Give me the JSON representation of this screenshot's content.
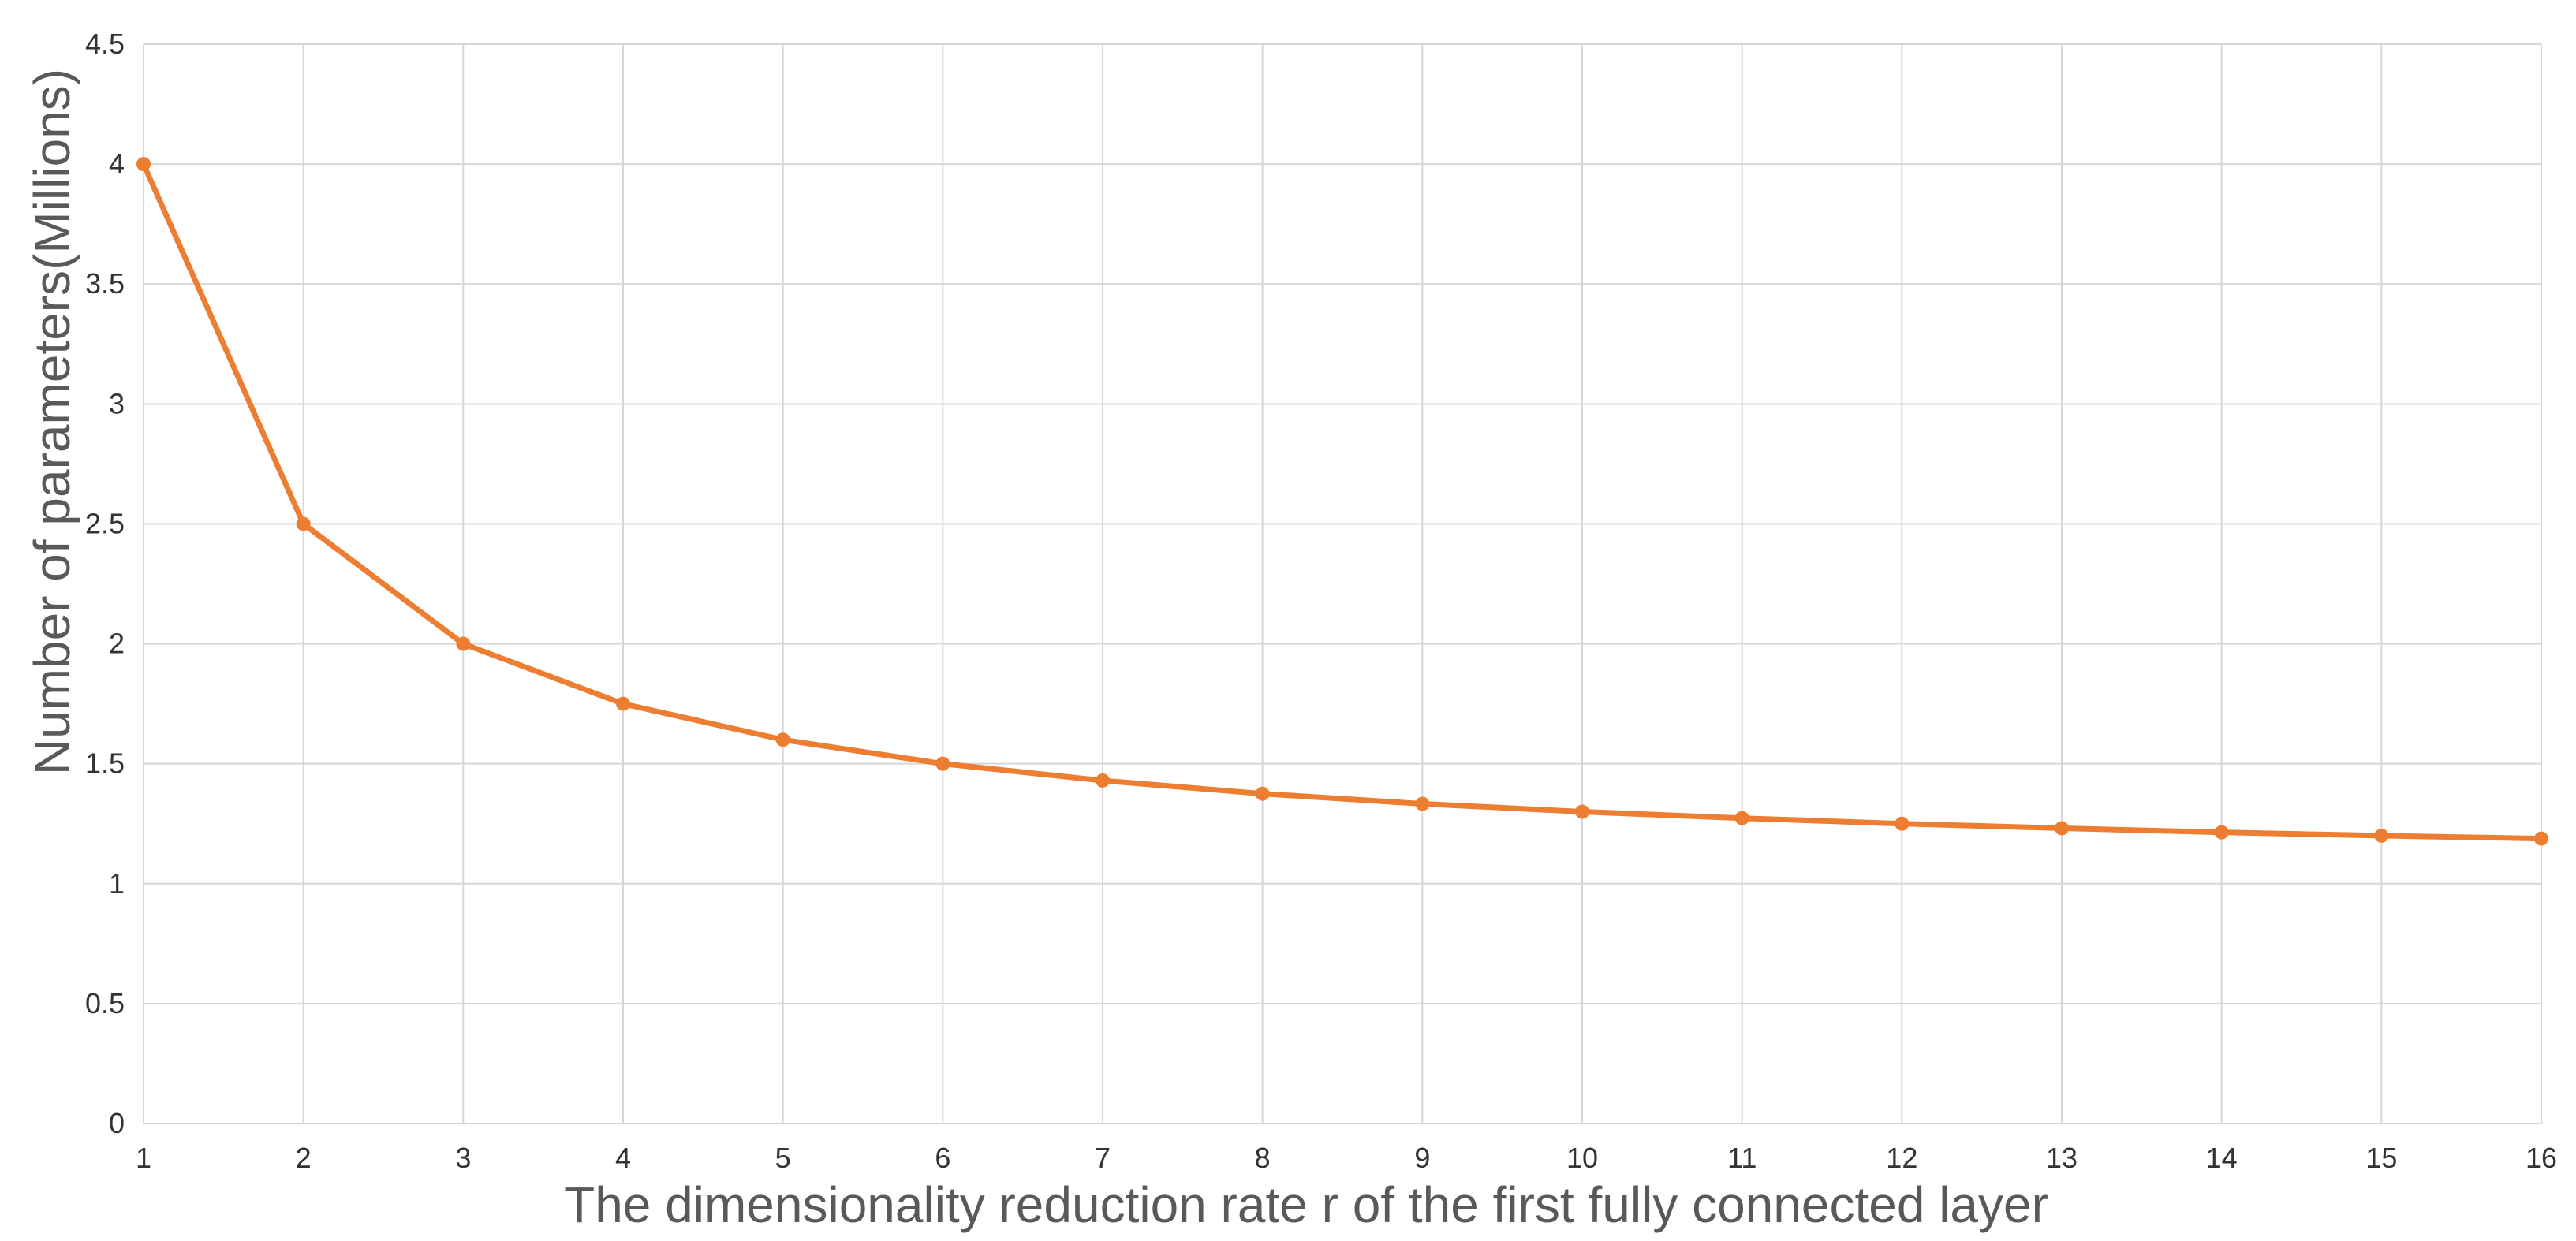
{
  "chart_data": {
    "type": "line",
    "title": "",
    "xlabel": "The dimensionality reduction rate r of the first fully connected layer",
    "ylabel": "Number of  parameters(Millions)",
    "x": [
      1,
      2,
      3,
      4,
      5,
      6,
      7,
      8,
      9,
      10,
      11,
      12,
      13,
      14,
      15,
      16
    ],
    "xlim": [
      1,
      16
    ],
    "ylim": [
      0,
      4.5
    ],
    "y_ticks": [
      "0",
      "0.5",
      "1",
      "1.5",
      "2",
      "2.5",
      "3",
      "3.5",
      "4",
      "4.5"
    ],
    "x_ticks": [
      "1",
      "2",
      "3",
      "4",
      "5",
      "6",
      "7",
      "8",
      "9",
      "10",
      "11",
      "12",
      "13",
      "14",
      "15",
      "16"
    ],
    "grid": true,
    "legend": "none",
    "series": [
      {
        "color": "#ed7d31",
        "marker": "circle",
        "values": [
          4.0,
          2.5,
          2.0,
          1.75,
          1.6,
          1.5,
          1.43,
          1.375,
          1.333,
          1.3,
          1.273,
          1.25,
          1.231,
          1.214,
          1.2,
          1.188
        ]
      }
    ]
  }
}
